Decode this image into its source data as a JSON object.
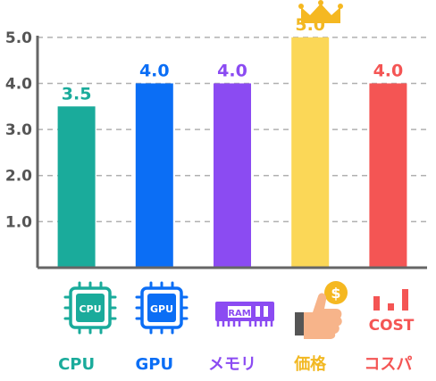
{
  "chart_data": {
    "type": "bar",
    "categories": [
      "CPU",
      "GPU",
      "メモリ",
      "価格",
      "コスパ"
    ],
    "values": [
      3.5,
      4.0,
      4.0,
      5.0,
      4.0
    ],
    "value_labels": [
      "3.5",
      "4.0",
      "4.0",
      "5.0",
      "4.0"
    ],
    "colors": [
      "#1aab9b",
      "#0b6ef5",
      "#8b4bf2",
      "#fbd757",
      "#f45554"
    ],
    "label_colors": [
      "#1aab9b",
      "#0b6ef5",
      "#8b4bf2",
      "#f2b822",
      "#f45554"
    ],
    "yticks": [
      "1.0",
      "2.0",
      "3.0",
      "4.0",
      "5.0"
    ],
    "ylim": [
      0,
      5.5
    ],
    "grid": true,
    "highlight": "crown on 価格",
    "icons": [
      "cpu-chip-icon",
      "gpu-chip-icon",
      "ram-module-icon",
      "thumbs-up-coin-icon",
      "cost-bars-icon"
    ],
    "icon_texts": {
      "cpu": "CPU",
      "gpu": "GPU",
      "ram": "RAM",
      "coin": "$",
      "cost": "COST"
    }
  }
}
